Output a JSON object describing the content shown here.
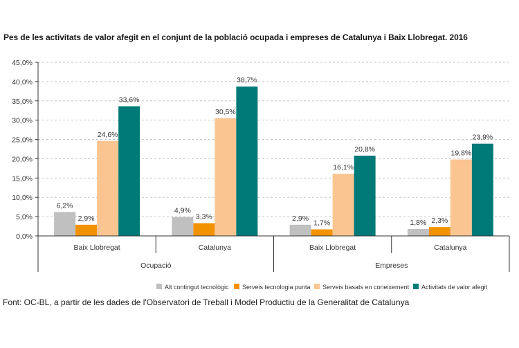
{
  "chart_data": {
    "type": "bar",
    "title": "Pes de les activitats de valor afegit en el conjunt de la població ocupada i empreses de Catalunya i Baix Llobregat. 2016",
    "xlabel": "",
    "ylabel": "",
    "ylim": [
      0,
      45
    ],
    "yticks": [
      "0,0%",
      "5,0%",
      "10,0%",
      "15,0%",
      "20,0%",
      "25,0%",
      "30,0%",
      "35,0%",
      "40,0%",
      "45,0%"
    ],
    "ytick_values": [
      0,
      5,
      10,
      15,
      20,
      25,
      30,
      35,
      40,
      45
    ],
    "grid": true,
    "groups": [
      "Ocupació",
      "Empreses"
    ],
    "categories": [
      "Baix Llobregat",
      "Catalunya",
      "Baix Llobregat",
      "Catalunya"
    ],
    "category_group": [
      0,
      0,
      1,
      1
    ],
    "series": [
      {
        "name": "Alt contingut tecnològic",
        "color": "#c0c0c0",
        "values": [
          6.2,
          4.9,
          2.9,
          1.8
        ],
        "labels": [
          "6,2%",
          "4,9%",
          "2,9%",
          "1,8%"
        ]
      },
      {
        "name": "Serveis tecnologia punta",
        "color": "#f39200",
        "values": [
          2.9,
          3.3,
          1.7,
          2.3
        ],
        "labels": [
          "2,9%",
          "3,3%",
          "1,7%",
          "2,3%"
        ]
      },
      {
        "name": "Serveis basats en coneixement",
        "color": "#fac591",
        "values": [
          24.6,
          30.5,
          16.1,
          19.8
        ],
        "labels": [
          "24,6%",
          "30,5%",
          "16,1%",
          "19,8%"
        ]
      },
      {
        "name": "Activitats de valor afegit",
        "color": "#007a78",
        "values": [
          33.6,
          38.7,
          20.8,
          23.9
        ],
        "labels": [
          "33,6%",
          "38,7%",
          "20,8%",
          "23,9%"
        ]
      }
    ],
    "legend": "bottom"
  },
  "source": "Font: OC-BL, a partir de les dades de l'Observatori de Treball i Model Productiu de la Generalitat de Catalunya"
}
